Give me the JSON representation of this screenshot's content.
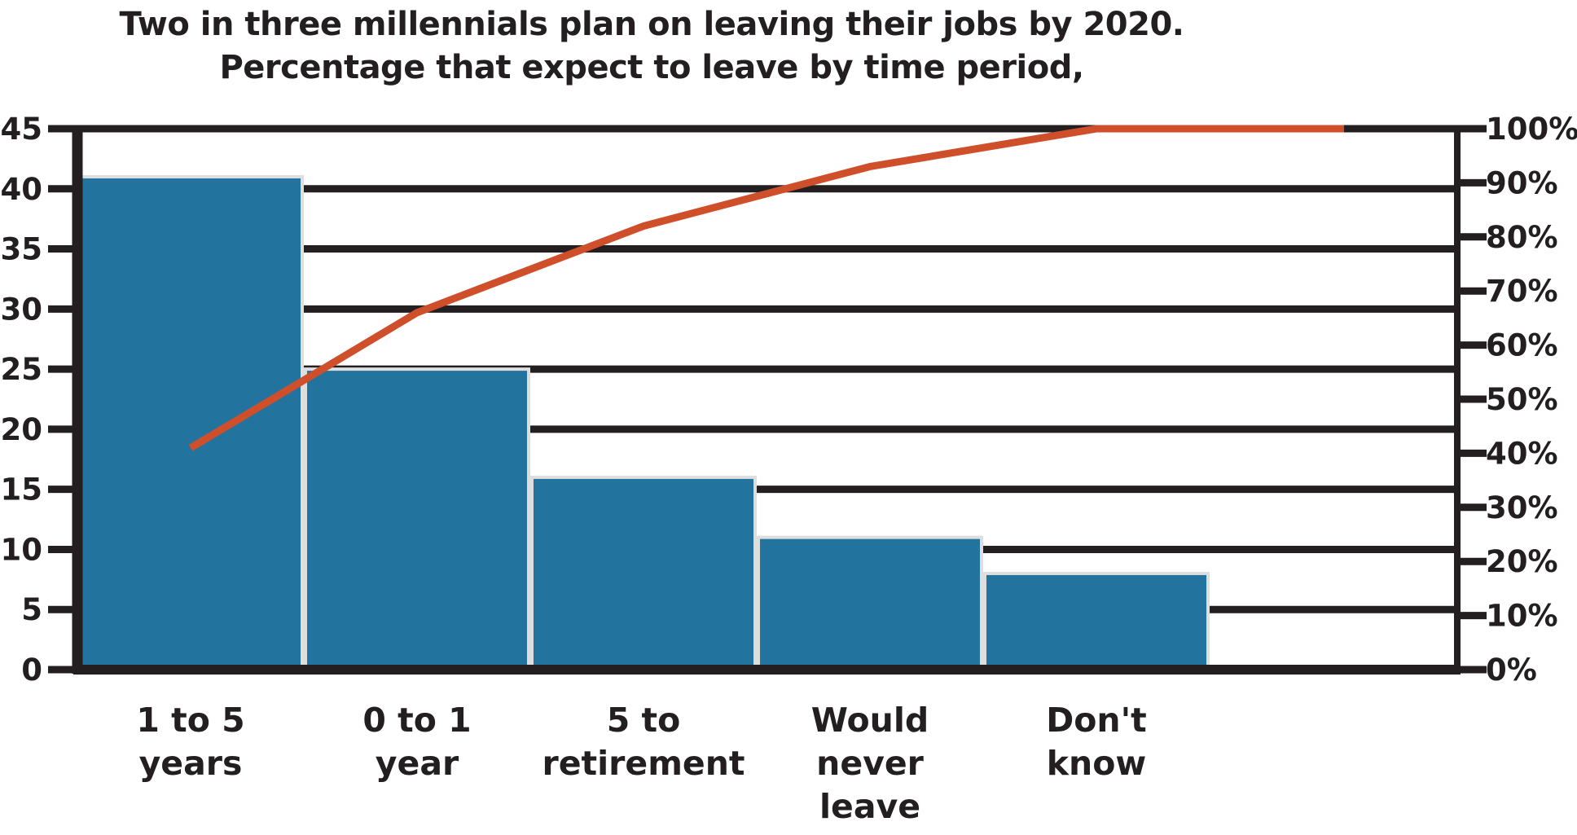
{
  "title": {
    "line1": "Two in three millennials plan on leaving their jobs by 2020.",
    "line2": "Percentage that expect to leave by time period,"
  },
  "chart_data": {
    "type": "bar",
    "subtype": "pareto",
    "title": "Two in three millennials plan on leaving their jobs by 2020. Percentage that expect to leave by time period,",
    "categories": [
      "1 to 5 years",
      "0 to 1 year",
      "5 to retirement",
      "Would never leave",
      "Don't know"
    ],
    "category_label_lines": [
      [
        "1 to 5",
        "years"
      ],
      [
        "0 to 1",
        "year"
      ],
      [
        "5 to",
        "retirement"
      ],
      [
        "Would",
        "never",
        "leave"
      ],
      [
        "Don't",
        "know"
      ]
    ],
    "series": [
      {
        "name": "percent-expecting-to-leave",
        "type": "bar",
        "axis": "left",
        "values": [
          41,
          25,
          16,
          11,
          8
        ]
      },
      {
        "name": "cumulative-percentage",
        "type": "line",
        "axis": "right",
        "values": [
          41,
          66,
          82,
          93,
          100
        ]
      }
    ],
    "left_axis": {
      "ticks": [
        0,
        5,
        10,
        15,
        20,
        25,
        30,
        35,
        40,
        45
      ],
      "range": [
        0,
        45
      ]
    },
    "right_axis": {
      "ticks": [
        "0%",
        "10%",
        "20%",
        "30%",
        "40%",
        "50%",
        "60%",
        "70%",
        "80%",
        "90%",
        "100%"
      ],
      "tick_values": [
        0,
        10,
        20,
        30,
        40,
        50,
        60,
        70,
        80,
        90,
        100
      ],
      "range": [
        0,
        100
      ]
    },
    "grid": true,
    "legend": false,
    "line_extends_flat_past_last_point": true,
    "colors": {
      "bar_fill": "#23739f",
      "bar_edge": "#dedede",
      "line": "#cf4f2a",
      "axis_and_grid": "#231f20",
      "text": "#231f20",
      "background": "#ffffff"
    }
  }
}
